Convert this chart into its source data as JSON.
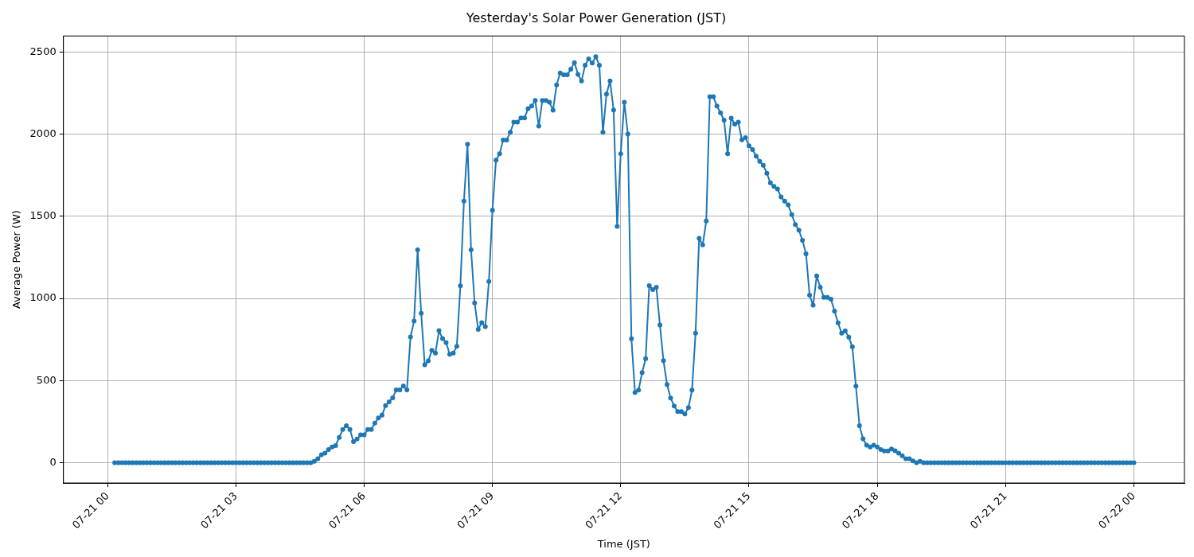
{
  "chart_data": {
    "type": "line",
    "title": "Yesterday's Solar Power Generation (JST)",
    "xlabel": "Time (JST)",
    "ylabel": "Average Power (W)",
    "xlim": [
      "--07-20T22:58",
      "--07-22T01:11"
    ],
    "ylim": [
      -124,
      2599
    ],
    "xticks": [
      {
        "value": "--07-21T00:00",
        "label": "07-21 00"
      },
      {
        "value": "--07-21T03:00",
        "label": "07-21 03"
      },
      {
        "value": "--07-21T06:00",
        "label": "07-21 06"
      },
      {
        "value": "--07-21T09:00",
        "label": "07-21 09"
      },
      {
        "value": "--07-21T12:00",
        "label": "07-21 12"
      },
      {
        "value": "--07-21T15:00",
        "label": "07-21 15"
      },
      {
        "value": "--07-21T18:00",
        "label": "07-21 18"
      },
      {
        "value": "--07-21T21:00",
        "label": "07-21 21"
      },
      {
        "value": "--07-22T00:00",
        "label": "07-22 00"
      }
    ],
    "yticks": [
      0,
      500,
      1000,
      1500,
      2000,
      2500
    ],
    "grid": true,
    "legend": false,
    "marker": "circle",
    "line_style": "solid",
    "series": [
      {
        "color": "#1f77b4",
        "x": [
          "--07-21T00:10",
          "--07-21T00:15",
          "--07-21T00:20",
          "--07-21T00:25",
          "--07-21T00:30",
          "--07-21T00:35",
          "--07-21T00:40",
          "--07-21T00:45",
          "--07-21T00:50",
          "--07-21T00:55",
          "--07-21T01:00",
          "--07-21T01:05",
          "--07-21T01:10",
          "--07-21T01:15",
          "--07-21T01:20",
          "--07-21T01:25",
          "--07-21T01:30",
          "--07-21T01:35",
          "--07-21T01:40",
          "--07-21T01:45",
          "--07-21T01:50",
          "--07-21T01:55",
          "--07-21T02:00",
          "--07-21T02:05",
          "--07-21T02:10",
          "--07-21T02:15",
          "--07-21T02:20",
          "--07-21T02:25",
          "--07-21T02:30",
          "--07-21T02:35",
          "--07-21T02:40",
          "--07-21T02:45",
          "--07-21T02:50",
          "--07-21T02:55",
          "--07-21T03:00",
          "--07-21T03:05",
          "--07-21T03:10",
          "--07-21T03:15",
          "--07-21T03:20",
          "--07-21T03:25",
          "--07-21T03:30",
          "--07-21T03:35",
          "--07-21T03:40",
          "--07-21T03:45",
          "--07-21T03:50",
          "--07-21T03:55",
          "--07-21T04:00",
          "--07-21T04:05",
          "--07-21T04:10",
          "--07-21T04:15",
          "--07-21T04:20",
          "--07-21T04:25",
          "--07-21T04:30",
          "--07-21T04:35",
          "--07-21T04:40",
          "--07-21T04:45",
          "--07-21T04:50",
          "--07-21T04:55",
          "--07-21T05:00",
          "--07-21T05:05",
          "--07-21T05:10",
          "--07-21T05:15",
          "--07-21T05:20",
          "--07-21T05:25",
          "--07-21T05:30",
          "--07-21T05:35",
          "--07-21T05:40",
          "--07-21T05:45",
          "--07-21T05:50",
          "--07-21T05:55",
          "--07-21T06:00",
          "--07-21T06:05",
          "--07-21T06:10",
          "--07-21T06:15",
          "--07-21T06:20",
          "--07-21T06:25",
          "--07-21T06:30",
          "--07-21T06:35",
          "--07-21T06:40",
          "--07-21T06:45",
          "--07-21T06:50",
          "--07-21T06:55",
          "--07-21T07:00",
          "--07-21T07:05",
          "--07-21T07:10",
          "--07-21T07:15",
          "--07-21T07:20",
          "--07-21T07:25",
          "--07-21T07:30",
          "--07-21T07:35",
          "--07-21T07:40",
          "--07-21T07:45",
          "--07-21T07:50",
          "--07-21T07:55",
          "--07-21T08:00",
          "--07-21T08:05",
          "--07-21T08:10",
          "--07-21T08:15",
          "--07-21T08:20",
          "--07-21T08:25",
          "--07-21T08:30",
          "--07-21T08:35",
          "--07-21T08:40",
          "--07-21T08:45",
          "--07-21T08:50",
          "--07-21T08:55",
          "--07-21T09:00",
          "--07-21T09:05",
          "--07-21T09:10",
          "--07-21T09:15",
          "--07-21T09:20",
          "--07-21T09:25",
          "--07-21T09:30",
          "--07-21T09:35",
          "--07-21T09:40",
          "--07-21T09:45",
          "--07-21T09:50",
          "--07-21T09:55",
          "--07-21T10:00",
          "--07-21T10:05",
          "--07-21T10:10",
          "--07-21T10:15",
          "--07-21T10:20",
          "--07-21T10:25",
          "--07-21T10:30",
          "--07-21T10:35",
          "--07-21T10:40",
          "--07-21T10:45",
          "--07-21T10:50",
          "--07-21T10:55",
          "--07-21T11:00",
          "--07-21T11:05",
          "--07-21T11:10",
          "--07-21T11:15",
          "--07-21T11:20",
          "--07-21T11:25",
          "--07-21T11:30",
          "--07-21T11:35",
          "--07-21T11:40",
          "--07-21T11:45",
          "--07-21T11:50",
          "--07-21T11:55",
          "--07-21T12:00",
          "--07-21T12:05",
          "--07-21T12:10",
          "--07-21T12:15",
          "--07-21T12:20",
          "--07-21T12:25",
          "--07-21T12:30",
          "--07-21T12:35",
          "--07-21T12:40",
          "--07-21T12:45",
          "--07-21T12:50",
          "--07-21T12:55",
          "--07-21T13:00",
          "--07-21T13:05",
          "--07-21T13:10",
          "--07-21T13:15",
          "--07-21T13:20",
          "--07-21T13:25",
          "--07-21T13:30",
          "--07-21T13:35",
          "--07-21T13:40",
          "--07-21T13:45",
          "--07-21T13:50",
          "--07-21T13:55",
          "--07-21T14:00",
          "--07-21T14:05",
          "--07-21T14:10",
          "--07-21T14:15",
          "--07-21T14:20",
          "--07-21T14:25",
          "--07-21T14:30",
          "--07-21T14:35",
          "--07-21T14:40",
          "--07-21T14:45",
          "--07-21T14:50",
          "--07-21T14:55",
          "--07-21T15:00",
          "--07-21T15:05",
          "--07-21T15:10",
          "--07-21T15:15",
          "--07-21T15:20",
          "--07-21T15:25",
          "--07-21T15:30",
          "--07-21T15:35",
          "--07-21T15:40",
          "--07-21T15:45",
          "--07-21T15:50",
          "--07-21T15:55",
          "--07-21T16:00",
          "--07-21T16:05",
          "--07-21T16:10",
          "--07-21T16:15",
          "--07-21T16:20",
          "--07-21T16:25",
          "--07-21T16:30",
          "--07-21T16:35",
          "--07-21T16:40",
          "--07-21T16:45",
          "--07-21T16:50",
          "--07-21T16:55",
          "--07-21T17:00",
          "--07-21T17:05",
          "--07-21T17:10",
          "--07-21T17:15",
          "--07-21T17:20",
          "--07-21T17:25",
          "--07-21T17:30",
          "--07-21T17:35",
          "--07-21T17:40",
          "--07-21T17:45",
          "--07-21T17:50",
          "--07-21T17:55",
          "--07-21T18:00",
          "--07-21T18:05",
          "--07-21T18:10",
          "--07-21T18:15",
          "--07-21T18:20",
          "--07-21T18:25",
          "--07-21T18:30",
          "--07-21T18:35",
          "--07-21T18:40",
          "--07-21T18:45",
          "--07-21T18:50",
          "--07-21T18:55",
          "--07-21T19:00",
          "--07-21T19:05",
          "--07-21T19:10",
          "--07-21T19:15",
          "--07-21T19:20",
          "--07-21T19:25",
          "--07-21T19:30",
          "--07-21T19:35",
          "--07-21T19:40",
          "--07-21T19:45",
          "--07-21T19:50",
          "--07-21T19:55",
          "--07-21T20:00",
          "--07-21T20:05",
          "--07-21T20:10",
          "--07-21T20:15",
          "--07-21T20:20",
          "--07-21T20:25",
          "--07-21T20:30",
          "--07-21T20:35",
          "--07-21T20:40",
          "--07-21T20:45",
          "--07-21T20:50",
          "--07-21T20:55",
          "--07-21T21:00",
          "--07-21T21:05",
          "--07-21T21:10",
          "--07-21T21:15",
          "--07-21T21:20",
          "--07-21T21:25",
          "--07-21T21:30",
          "--07-21T21:35",
          "--07-21T21:40",
          "--07-21T21:45",
          "--07-21T21:50",
          "--07-21T21:55",
          "--07-21T22:00",
          "--07-21T22:05",
          "--07-21T22:10",
          "--07-21T22:15",
          "--07-21T22:20",
          "--07-21T22:25",
          "--07-21T22:30",
          "--07-21T22:35",
          "--07-21T22:40",
          "--07-21T22:45",
          "--07-21T22:50",
          "--07-21T22:55",
          "--07-21T23:00",
          "--07-21T23:05",
          "--07-21T23:10",
          "--07-21T23:15",
          "--07-21T23:20",
          "--07-21T23:25",
          "--07-21T23:30",
          "--07-21T23:35",
          "--07-21T23:40",
          "--07-21T23:45",
          "--07-21T23:50",
          "--07-21T23:55",
          "--07-22T00:00"
        ],
        "values": [
          0,
          0,
          0,
          0,
          0,
          0,
          0,
          0,
          0,
          0,
          0,
          0,
          0,
          0,
          0,
          0,
          0,
          0,
          0,
          0,
          0,
          0,
          0,
          0,
          0,
          0,
          0,
          0,
          0,
          0,
          0,
          0,
          0,
          0,
          0,
          0,
          0,
          0,
          0,
          0,
          0,
          0,
          0,
          0,
          0,
          0,
          0,
          0,
          0,
          0,
          0,
          0,
          0,
          0,
          0,
          0,
          8,
          24,
          48,
          58,
          80,
          96,
          104,
          154,
          202,
          225,
          202,
          128,
          144,
          169,
          169,
          202,
          202,
          241,
          273,
          289,
          347,
          371,
          395,
          443,
          443,
          467,
          443,
          766,
          862,
          1296,
          910,
          596,
          620,
          684,
          668,
          804,
          756,
          732,
          660,
          668,
          708,
          1077,
          1593,
          1940,
          1296,
          973,
          812,
          853,
          829,
          1103,
          1537,
          1843,
          1882,
          1965,
          1965,
          2012,
          2074,
          2074,
          2100,
          2100,
          2156,
          2172,
          2206,
          2050,
          2206,
          2206,
          2195,
          2147,
          2301,
          2373,
          2362,
          2362,
          2397,
          2437,
          2365,
          2325,
          2421,
          2460,
          2434,
          2473,
          2421,
          2012,
          2245,
          2325,
          2148,
          1439,
          1882,
          2195,
          2002,
          755,
          428,
          442,
          549,
          634,
          1078,
          1054,
          1068,
          838,
          621,
          476,
          394,
          345,
          311,
          311,
          297,
          335,
          442,
          789,
          1367,
          1326,
          1472,
          2229,
          2229,
          2172,
          2131,
          2086,
          1882,
          2098,
          2062,
          2074,
          1966,
          1980,
          1930,
          1907,
          1867,
          1835,
          1811,
          1763,
          1704,
          1683,
          1667,
          1618,
          1593,
          1570,
          1511,
          1450,
          1416,
          1354,
          1272,
          1020,
          959,
          1137,
          1069,
          1007,
          1007,
          996,
          923,
          851,
          788,
          803,
          764,
          706,
          466,
          225,
          145,
          106,
          96,
          106,
          96,
          80,
          71,
          71,
          83,
          72,
          58,
          42,
          24,
          24,
          11,
          0,
          8,
          0,
          0,
          0,
          0,
          0,
          0,
          0,
          0,
          0,
          0,
          0,
          0,
          0,
          0,
          0,
          0,
          0,
          0,
          0,
          0,
          0,
          0,
          0,
          0,
          0,
          0,
          0,
          0,
          0,
          0,
          0,
          0,
          0,
          0,
          0,
          0,
          0,
          0,
          0,
          0,
          0,
          0,
          0,
          0,
          0,
          0,
          0,
          0,
          0,
          0,
          0,
          0,
          0,
          0,
          0,
          0,
          0,
          0,
          0,
          0
        ]
      }
    ]
  }
}
